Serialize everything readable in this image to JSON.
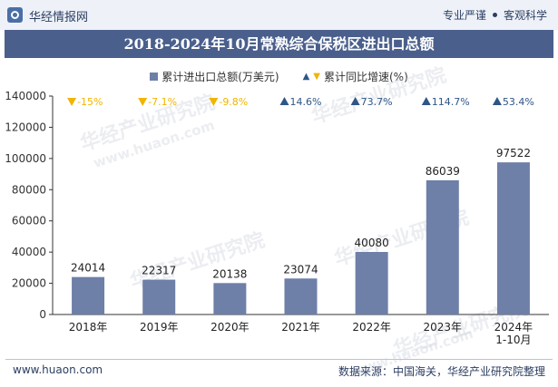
{
  "header": {
    "brand": "华经情报网",
    "tagline_left": "专业严谨",
    "tagline_right": "客观科学"
  },
  "colors": {
    "bar": "#6e7fa8",
    "title_bg": "#4a5f8c",
    "up": "#2e5687",
    "down": "#f1b400"
  },
  "watermark": {
    "cn": "华经产业研究院",
    "en": "www.huaon.com"
  },
  "chart_data": {
    "type": "bar",
    "title": "2018-2024年10月常熟综合保税区进出口总额",
    "categories": [
      "2018年",
      "2019年",
      "2020年",
      "2021年",
      "2022年",
      "2023年",
      "2024年\n1-10月"
    ],
    "series": [
      {
        "name": "累计进出口总额(万美元)",
        "type": "bar",
        "values": [
          24014,
          22317,
          20138,
          23074,
          40080,
          86039,
          97522
        ]
      },
      {
        "name": "累计同比增速(%)",
        "type": "marker",
        "values": [
          -15,
          -7.1,
          -9.8,
          14.6,
          73.7,
          114.7,
          53.4
        ],
        "labels": [
          "-15%",
          "-7.1%",
          "-9.8%",
          "14.6%",
          "73.7%",
          "114.7%",
          "53.4%"
        ]
      }
    ],
    "yticks": [
      0,
      20000,
      40000,
      60000,
      80000,
      100000,
      120000,
      140000
    ],
    "ylim": [
      0,
      140000
    ],
    "grid": false,
    "legend_position": "top-center"
  },
  "footer": {
    "website": "www.huaon.com",
    "source": "数据来源：中国海关，华经产业研究院整理"
  }
}
